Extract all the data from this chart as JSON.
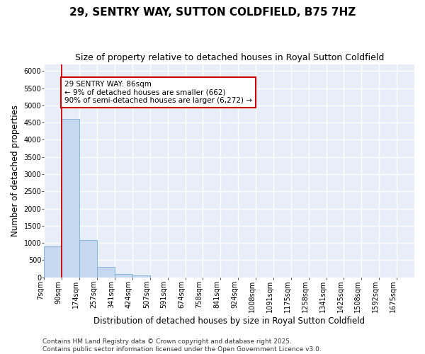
{
  "title": "29, SENTRY WAY, SUTTON COLDFIELD, B75 7HZ",
  "subtitle": "Size of property relative to detached houses in Royal Sutton Coldfield",
  "xlabel": "Distribution of detached houses by size in Royal Sutton Coldfield",
  "ylabel": "Number of detached properties",
  "bar_color": "#c5d8f0",
  "bar_edge_color": "#7aafd4",
  "bg_color": "#e8eef8",
  "grid_color": "white",
  "annotation_box_color": "#cc0000",
  "vline_color": "#cc0000",
  "annotation_text": "29 SENTRY WAY: 86sqm\n← 9% of detached houses are smaller (662)\n90% of semi-detached houses are larger (6,272) →",
  "annotation_fontsize": 7.5,
  "vline_x_bin": 1,
  "categories": [
    "7sqm",
    "90sqm",
    "174sqm",
    "257sqm",
    "341sqm",
    "424sqm",
    "507sqm",
    "591sqm",
    "674sqm",
    "758sqm",
    "841sqm",
    "924sqm",
    "1008sqm",
    "1091sqm",
    "1175sqm",
    "1258sqm",
    "1341sqm",
    "1425sqm",
    "1508sqm",
    "1592sqm",
    "1675sqm"
  ],
  "values": [
    900,
    4600,
    1080,
    300,
    90,
    60,
    0,
    0,
    0,
    0,
    0,
    0,
    0,
    0,
    0,
    0,
    0,
    0,
    0,
    0,
    0
  ],
  "ylim": [
    0,
    6200
  ],
  "yticks": [
    0,
    500,
    1000,
    1500,
    2000,
    2500,
    3000,
    3500,
    4000,
    4500,
    5000,
    5500,
    6000
  ],
  "footer": "Contains HM Land Registry data © Crown copyright and database right 2025.\nContains public sector information licensed under the Open Government Licence v3.0.",
  "title_fontsize": 11,
  "subtitle_fontsize": 9,
  "xlabel_fontsize": 8.5,
  "ylabel_fontsize": 8.5,
  "tick_fontsize": 7,
  "footer_fontsize": 6.5
}
